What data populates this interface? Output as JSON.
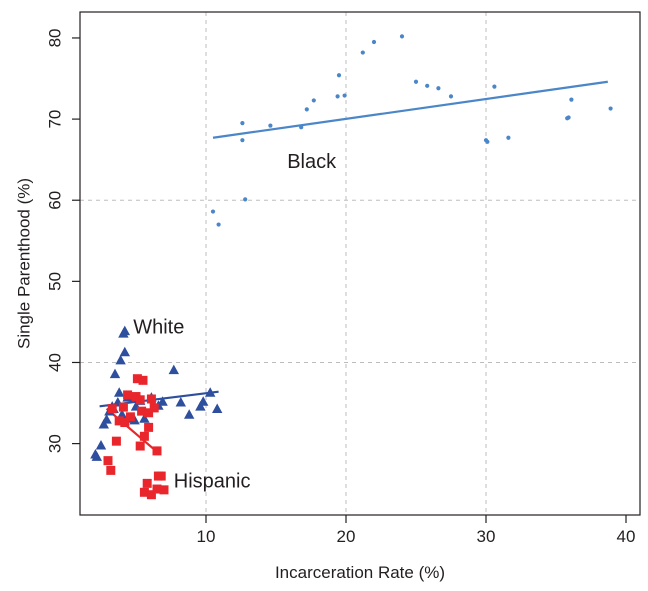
{
  "chart_data": {
    "type": "scatter",
    "title": "",
    "xlabel": "Incarceration Rate (%)",
    "ylabel": "Single Parenthood (%)",
    "xlim": [
      1.0,
      41.0
    ],
    "ylim": [
      21.2,
      83.2
    ],
    "x_ticks": [
      10,
      20,
      30,
      40
    ],
    "y_ticks": [
      30,
      40,
      50,
      60,
      70,
      80
    ],
    "grid": "dashed at 10, 20, 30 on x and 40, 60 on y",
    "series": [
      {
        "label": "Black",
        "marker": "circle",
        "color": "#4a86c8",
        "points": [
          [
            10.5,
            58.6
          ],
          [
            10.9,
            57.0
          ],
          [
            12.6,
            69.5
          ],
          [
            12.6,
            67.4
          ],
          [
            12.8,
            60.1
          ],
          [
            14.6,
            69.2
          ],
          [
            16.8,
            69.0
          ],
          [
            17.2,
            71.2
          ],
          [
            17.7,
            72.3
          ],
          [
            19.4,
            72.8
          ],
          [
            19.5,
            75.4
          ],
          [
            19.9,
            72.9
          ],
          [
            21.2,
            78.2
          ],
          [
            22.0,
            79.5
          ],
          [
            24.0,
            80.2
          ],
          [
            25.0,
            74.6
          ],
          [
            25.8,
            74.1
          ],
          [
            26.6,
            73.8
          ],
          [
            27.5,
            72.8
          ],
          [
            30.0,
            67.4
          ],
          [
            30.1,
            67.2
          ],
          [
            30.6,
            74.0
          ],
          [
            31.6,
            67.7
          ],
          [
            35.8,
            70.1
          ],
          [
            35.9,
            70.2
          ],
          [
            36.1,
            72.4
          ],
          [
            38.9,
            71.3
          ]
        ],
        "trend": [
          [
            10.5,
            67.7
          ],
          [
            38.7,
            74.6
          ]
        ]
      },
      {
        "label": "White",
        "marker": "triangle",
        "color": "#2e4e9e",
        "points": [
          [
            2.1,
            28.6
          ],
          [
            2.2,
            28.3
          ],
          [
            2.5,
            29.7
          ],
          [
            2.7,
            32.3
          ],
          [
            2.9,
            32.9
          ],
          [
            3.1,
            33.9
          ],
          [
            3.3,
            34.5
          ],
          [
            3.4,
            34.2
          ],
          [
            3.5,
            38.5
          ],
          [
            3.7,
            35.0
          ],
          [
            3.8,
            36.2
          ],
          [
            3.9,
            40.2
          ],
          [
            4.0,
            33.5
          ],
          [
            4.1,
            43.5
          ],
          [
            4.2,
            43.8
          ],
          [
            4.2,
            41.2
          ],
          [
            4.4,
            35.6
          ],
          [
            4.6,
            33.0
          ],
          [
            4.9,
            32.8
          ],
          [
            5.0,
            34.5
          ],
          [
            5.3,
            35.2
          ],
          [
            5.6,
            33.0
          ],
          [
            6.1,
            35.6
          ],
          [
            6.6,
            34.6
          ],
          [
            6.9,
            35.1
          ],
          [
            7.7,
            39.0
          ],
          [
            8.2,
            35.0
          ],
          [
            8.8,
            33.5
          ],
          [
            9.6,
            34.5
          ],
          [
            9.8,
            35.1
          ],
          [
            10.3,
            36.2
          ],
          [
            10.8,
            34.2
          ]
        ],
        "trend": [
          [
            2.4,
            34.6
          ],
          [
            10.9,
            36.4
          ]
        ]
      },
      {
        "label": "Hispanic",
        "marker": "square",
        "color": "#e8262b",
        "points": [
          [
            3.0,
            27.9
          ],
          [
            3.2,
            26.7
          ],
          [
            3.3,
            34.3
          ],
          [
            3.6,
            30.3
          ],
          [
            3.8,
            32.8
          ],
          [
            4.1,
            34.5
          ],
          [
            4.2,
            32.6
          ],
          [
            4.4,
            36.0
          ],
          [
            4.6,
            33.3
          ],
          [
            5.0,
            35.8
          ],
          [
            5.1,
            38.0
          ],
          [
            5.3,
            29.7
          ],
          [
            5.3,
            35.4
          ],
          [
            5.4,
            34.0
          ],
          [
            5.5,
            37.8
          ],
          [
            5.6,
            30.9
          ],
          [
            5.6,
            24.0
          ],
          [
            5.8,
            25.1
          ],
          [
            5.9,
            33.8
          ],
          [
            5.9,
            32.0
          ],
          [
            6.1,
            35.5
          ],
          [
            6.1,
            23.7
          ],
          [
            6.3,
            34.4
          ],
          [
            6.5,
            29.1
          ],
          [
            6.5,
            24.4
          ],
          [
            6.6,
            26.0
          ],
          [
            6.8,
            26.0
          ],
          [
            7.0,
            24.3
          ]
        ],
        "trend": [
          [
            2.9,
            34.3
          ],
          [
            6.7,
            28.7
          ]
        ]
      }
    ],
    "annotations": [
      {
        "text": "Black",
        "x": 15.8,
        "y": 64.7
      },
      {
        "text": "White",
        "x": 4.8,
        "y": 44.3
      },
      {
        "text": "Hispanic",
        "x": 7.7,
        "y": 25.3
      }
    ]
  }
}
